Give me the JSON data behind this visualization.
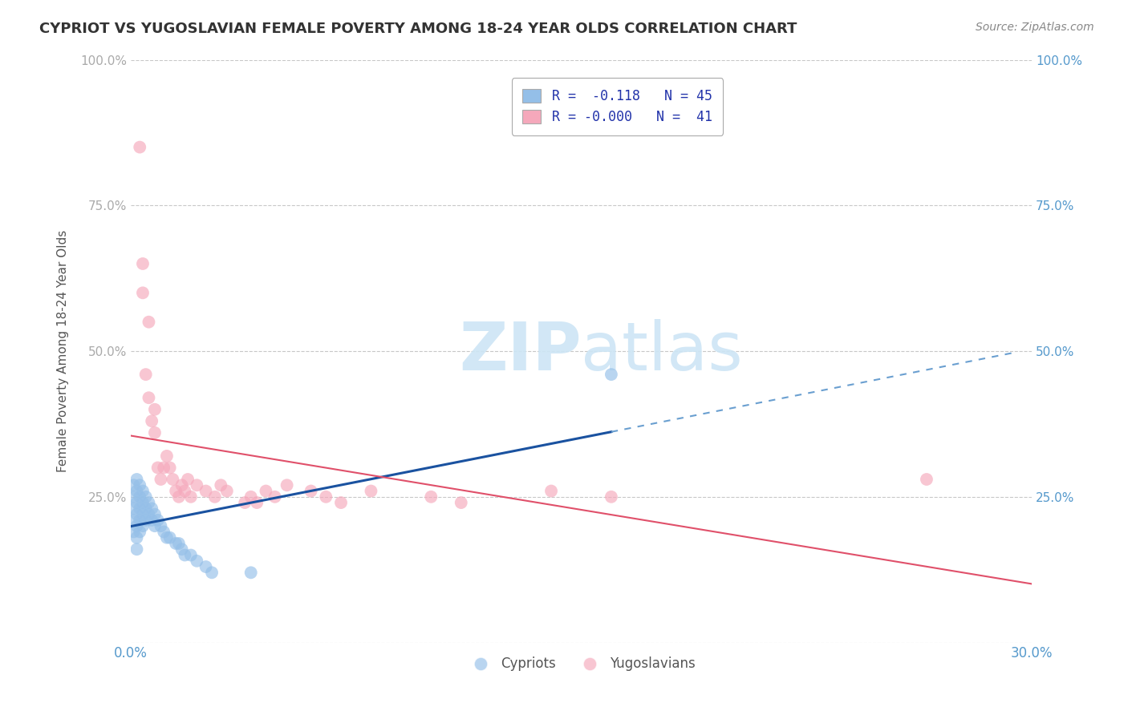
{
  "title": "CYPRIOT VS YUGOSLAVIAN FEMALE POVERTY AMONG 18-24 YEAR OLDS CORRELATION CHART",
  "source": "Source: ZipAtlas.com",
  "ylabel": "Female Poverty Among 18-24 Year Olds",
  "xmin": 0.0,
  "xmax": 0.3,
  "ymin": 0.0,
  "ymax": 1.0,
  "ytick_labels_left": [
    "",
    "25.0%",
    "50.0%",
    "75.0%",
    "100.0%"
  ],
  "ytick_labels_right": [
    "",
    "25.0%",
    "50.0%",
    "75.0%",
    "100.0%"
  ],
  "ytick_values": [
    0.0,
    0.25,
    0.5,
    0.75,
    1.0
  ],
  "legend_line1": "R =  -0.118   N = 45",
  "legend_line2": "R = -0.000   N =  41",
  "cypriot_color": "#94bfe8",
  "yugoslav_color": "#f5a8bb",
  "trend_blue": "#1a52a0",
  "trend_pink": "#e0506a",
  "trend_blue_dashed": "#6a9fd0",
  "watermark_color": "#cde5f5",
  "background_color": "#ffffff",
  "grid_color": "#c8c8c8",
  "cypriot_x": [
    0.001,
    0.001,
    0.001,
    0.001,
    0.001,
    0.002,
    0.002,
    0.002,
    0.002,
    0.002,
    0.002,
    0.002,
    0.003,
    0.003,
    0.003,
    0.003,
    0.003,
    0.004,
    0.004,
    0.004,
    0.004,
    0.005,
    0.005,
    0.005,
    0.006,
    0.006,
    0.007,
    0.007,
    0.008,
    0.008,
    0.009,
    0.01,
    0.011,
    0.012,
    0.013,
    0.015,
    0.016,
    0.017,
    0.018,
    0.02,
    0.022,
    0.025,
    0.027,
    0.04,
    0.16
  ],
  "cypriot_y": [
    0.27,
    0.23,
    0.25,
    0.21,
    0.19,
    0.28,
    0.26,
    0.24,
    0.22,
    0.2,
    0.18,
    0.16,
    0.27,
    0.25,
    0.23,
    0.21,
    0.19,
    0.26,
    0.24,
    0.22,
    0.2,
    0.25,
    0.23,
    0.21,
    0.24,
    0.22,
    0.23,
    0.21,
    0.22,
    0.2,
    0.21,
    0.2,
    0.19,
    0.18,
    0.18,
    0.17,
    0.17,
    0.16,
    0.15,
    0.15,
    0.14,
    0.13,
    0.12,
    0.12,
    0.46
  ],
  "yugoslav_x": [
    0.003,
    0.004,
    0.004,
    0.005,
    0.006,
    0.006,
    0.007,
    0.008,
    0.008,
    0.009,
    0.01,
    0.011,
    0.012,
    0.013,
    0.014,
    0.015,
    0.016,
    0.017,
    0.018,
    0.019,
    0.02,
    0.022,
    0.025,
    0.028,
    0.03,
    0.032,
    0.038,
    0.04,
    0.042,
    0.045,
    0.048,
    0.052,
    0.06,
    0.065,
    0.07,
    0.08,
    0.1,
    0.11,
    0.14,
    0.16,
    0.265
  ],
  "yugoslav_y": [
    0.85,
    0.65,
    0.6,
    0.46,
    0.42,
    0.55,
    0.38,
    0.36,
    0.4,
    0.3,
    0.28,
    0.3,
    0.32,
    0.3,
    0.28,
    0.26,
    0.25,
    0.27,
    0.26,
    0.28,
    0.25,
    0.27,
    0.26,
    0.25,
    0.27,
    0.26,
    0.24,
    0.25,
    0.24,
    0.26,
    0.25,
    0.27,
    0.26,
    0.25,
    0.24,
    0.26,
    0.25,
    0.24,
    0.26,
    0.25,
    0.28
  ]
}
